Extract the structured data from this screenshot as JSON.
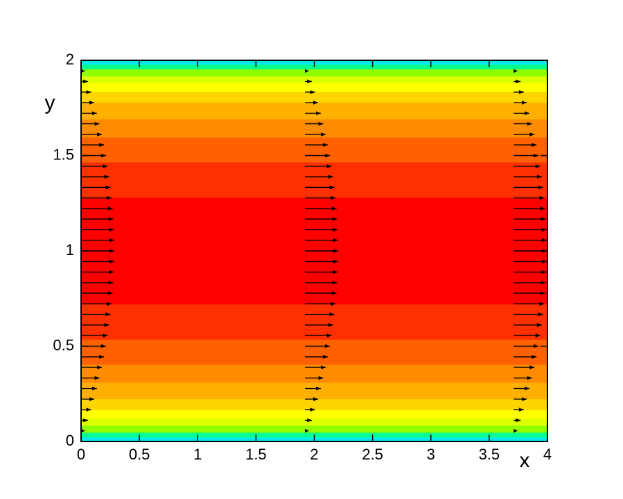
{
  "chart_data": {
    "type": "contour-vector",
    "xlabel": "x",
    "ylabel": "y",
    "xlim": [
      0,
      4
    ],
    "ylim": [
      0,
      2
    ],
    "xticks": [
      0,
      0.5,
      1,
      1.5,
      2,
      2.5,
      3,
      3.5,
      4
    ],
    "yticks": [
      0,
      0.5,
      1,
      1.5,
      2
    ],
    "band_edges": [
      0,
      0.022,
      0.047,
      0.084,
      0.12,
      0.167,
      0.222,
      0.309,
      0.404,
      0.535,
      0.72,
      1.28,
      1.465,
      1.596,
      1.691,
      1.778,
      1.833,
      1.88,
      1.916,
      1.953,
      1.978,
      2
    ],
    "band_colors": [
      "#00e8e8",
      "#00ff90",
      "#90ff00",
      "#ddff00",
      "#ffff00",
      "#ffd500",
      "#ffb000",
      "#ff8c00",
      "#ff6000",
      "#ff3000",
      "#ff0000",
      "#ff3000",
      "#ff6000",
      "#ff8c00",
      "#ffb000",
      "#ffd500",
      "#ffff00",
      "#ddff00",
      "#90ff00",
      "#00ff90",
      "#00e8e8"
    ],
    "vectors": {
      "x": [
        0,
        1.92,
        3.71
      ],
      "y": [
        0,
        0.056,
        0.111,
        0.167,
        0.222,
        0.278,
        0.333,
        0.389,
        0.444,
        0.5,
        0.556,
        0.611,
        0.667,
        0.722,
        0.778,
        0.833,
        0.889,
        0.944,
        1,
        1.056,
        1.111,
        1.167,
        1.222,
        1.278,
        1.333,
        1.389,
        1.444,
        1.5,
        1.556,
        1.611,
        1.667,
        1.722,
        1.778,
        1.833,
        1.889,
        1.944,
        2
      ],
      "u": [
        0,
        0.031,
        0.06,
        0.087,
        0.113,
        0.136,
        0.158,
        0.179,
        0.197,
        0.214,
        0.229,
        0.242,
        0.253,
        0.263,
        0.271,
        0.277,
        0.282,
        0.284,
        0.285,
        0.284,
        0.282,
        0.277,
        0.271,
        0.263,
        0.253,
        0.242,
        0.229,
        0.214,
        0.197,
        0.179,
        0.158,
        0.136,
        0.113,
        0.087,
        0.06,
        0.031,
        0
      ],
      "color": "#000000"
    }
  }
}
